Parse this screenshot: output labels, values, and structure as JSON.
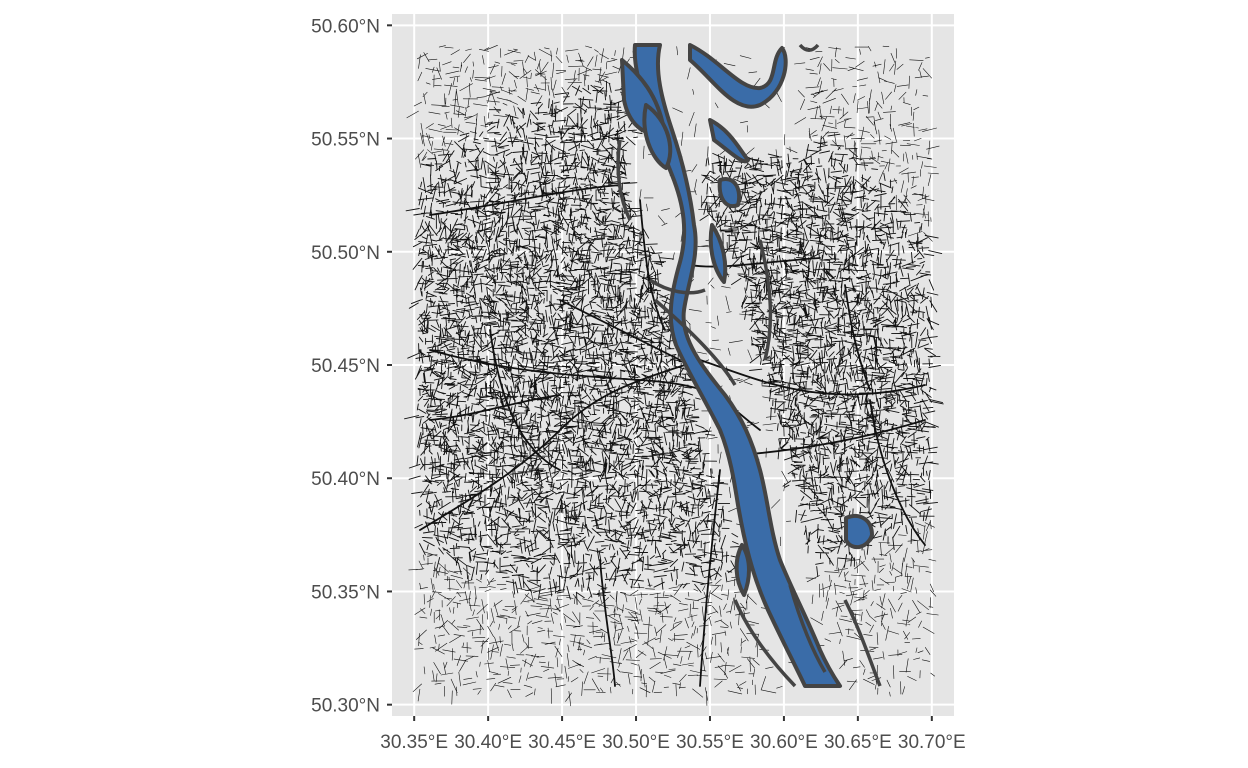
{
  "map": {
    "y_ticks": [
      {
        "value": 50.6,
        "label": "50.60°N"
      },
      {
        "value": 50.55,
        "label": "50.55°N"
      },
      {
        "value": 50.5,
        "label": "50.50°N"
      },
      {
        "value": 50.45,
        "label": "50.45°N"
      },
      {
        "value": 50.4,
        "label": "50.40°N"
      },
      {
        "value": 50.35,
        "label": "50.35°N"
      },
      {
        "value": 50.3,
        "label": "50.30°N"
      }
    ],
    "x_ticks": [
      {
        "value": 30.35,
        "label": "30.35°E"
      },
      {
        "value": 30.4,
        "label": "30.40°E"
      },
      {
        "value": 30.45,
        "label": "30.45°E"
      },
      {
        "value": 30.5,
        "label": "30.50°E"
      },
      {
        "value": 30.55,
        "label": "30.55°E"
      },
      {
        "value": 30.6,
        "label": "30.60°E"
      },
      {
        "value": 30.65,
        "label": "30.65°E"
      },
      {
        "value": 30.7,
        "label": "30.70°E"
      }
    ],
    "xlim": [
      30.335,
      30.715
    ],
    "ylim": [
      50.295,
      50.605
    ],
    "colors": {
      "panel": "#e5e5e5",
      "grid": "#ffffff",
      "roads": "#111111",
      "water_fill": "#3a6ca8",
      "water_outline": "#444444",
      "tick_text": "#4d4d4d"
    },
    "layers": [
      "roads",
      "water"
    ]
  }
}
